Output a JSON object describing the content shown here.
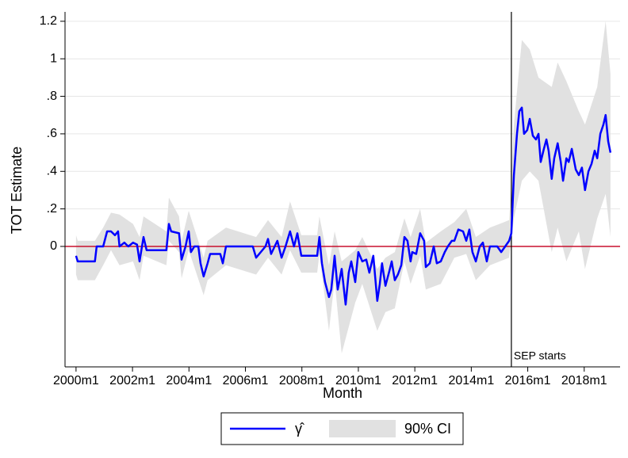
{
  "chart_data": {
    "type": "line",
    "y_label": "TOT Estimate",
    "x_label": "Month",
    "xlim": [
      1999.61,
      2019.27
    ],
    "xticks": [
      {
        "value": 2000,
        "label": "2000m1"
      },
      {
        "value": 2002,
        "label": "2002m1"
      },
      {
        "value": 2004,
        "label": "2004m1"
      },
      {
        "value": 2006,
        "label": "2006m1"
      },
      {
        "value": 2008,
        "label": "2008m1"
      },
      {
        "value": 2010,
        "label": "2010m1"
      },
      {
        "value": 2012,
        "label": "2012m1"
      },
      {
        "value": 2014,
        "label": "2014m1"
      },
      {
        "value": 2016,
        "label": "2016m1"
      },
      {
        "value": 2018,
        "label": "2018m1"
      }
    ],
    "ylim": [
      -0.642,
      1.25
    ],
    "yticks": [
      0,
      {
        "value": 0.2,
        "label": ".2"
      },
      {
        "value": 0.4,
        "label": ".4"
      },
      {
        "value": 0.6,
        "label": ".6"
      },
      {
        "value": 0.8,
        "label": ".8"
      },
      1,
      1.2
    ],
    "grid": true,
    "reference_line": {
      "y": 0,
      "color": "#c8102e"
    },
    "event_line": {
      "x": 2015.42,
      "label": "SEP starts"
    },
    "legend": "bottom",
    "series": [
      {
        "name": "γ̂",
        "color": "#0000ff",
        "x": [
          2000.0,
          2000.06,
          2000.67,
          2000.73,
          2000.96,
          2001.1,
          2001.24,
          2001.38,
          2001.49,
          2001.54,
          2001.71,
          2001.85,
          2002.02,
          2002.16,
          2002.25,
          2002.39,
          2002.5,
          2003.2,
          2003.29,
          2003.37,
          2003.65,
          2003.74,
          2003.88,
          2003.99,
          2004.07,
          2004.19,
          2004.33,
          2004.41,
          2004.52,
          2004.66,
          2004.75,
          2005.11,
          2005.2,
          2005.31,
          2006.01,
          2006.26,
          2006.38,
          2006.71,
          2006.8,
          2006.91,
          2007.13,
          2007.28,
          2007.42,
          2007.58,
          2007.72,
          2007.84,
          2007.98,
          2008.54,
          2008.62,
          2008.71,
          2008.82,
          2008.96,
          2009.04,
          2009.16,
          2009.27,
          2009.41,
          2009.55,
          2009.66,
          2009.75,
          2009.89,
          2010.0,
          2010.14,
          2010.28,
          2010.39,
          2010.53,
          2010.67,
          2010.76,
          2010.84,
          2010.96,
          2011.1,
          2011.18,
          2011.29,
          2011.4,
          2011.52,
          2011.63,
          2011.74,
          2011.85,
          2011.91,
          2012.05,
          2012.19,
          2012.33,
          2012.39,
          2012.53,
          2012.67,
          2012.78,
          2012.92,
          2013.06,
          2013.17,
          2013.31,
          2013.4,
          2013.54,
          2013.71,
          2013.82,
          2013.93,
          2014.04,
          2014.16,
          2014.3,
          2014.41,
          2014.55,
          2014.66,
          2014.92,
          2015.06,
          2015.2,
          2015.34,
          2015.42,
          2015.51,
          2015.62,
          2015.7,
          2015.79,
          2015.87,
          2015.98,
          2016.07,
          2016.18,
          2016.29,
          2016.38,
          2016.46,
          2016.57,
          2016.66,
          2016.74,
          2016.85,
          2016.94,
          2017.06,
          2017.17,
          2017.25,
          2017.37,
          2017.45,
          2017.56,
          2017.7,
          2017.81,
          2017.92,
          2018.03,
          2018.15,
          2018.26,
          2018.37,
          2018.46,
          2018.57,
          2018.68,
          2018.76,
          2018.85,
          2018.93
        ],
        "values": [
          -0.05,
          -0.08,
          -0.08,
          0,
          0,
          0.08,
          0.08,
          0.06,
          0.08,
          0,
          0.02,
          0,
          0.02,
          0.01,
          -0.08,
          0.05,
          -0.02,
          -0.02,
          0.12,
          0.08,
          0.07,
          -0.07,
          0,
          0.08,
          -0.03,
          0,
          0,
          -0.09,
          -0.16,
          -0.09,
          -0.04,
          -0.04,
          -0.09,
          0,
          0,
          0,
          -0.06,
          0,
          0.04,
          -0.04,
          0.03,
          -0.06,
          0,
          0.08,
          0,
          0.07,
          -0.05,
          -0.05,
          0.05,
          -0.09,
          -0.19,
          -0.27,
          -0.23,
          -0.05,
          -0.23,
          -0.12,
          -0.31,
          -0.14,
          -0.08,
          -0.19,
          -0.03,
          -0.08,
          -0.07,
          -0.14,
          -0.05,
          -0.29,
          -0.2,
          -0.09,
          -0.21,
          -0.13,
          -0.08,
          -0.18,
          -0.15,
          -0.1,
          0.05,
          0.03,
          -0.08,
          -0.03,
          -0.04,
          0.07,
          0.03,
          -0.11,
          -0.09,
          0,
          -0.09,
          -0.08,
          -0.03,
          0,
          0.03,
          0.03,
          0.09,
          0.08,
          0.03,
          0.09,
          -0.03,
          -0.08,
          0,
          0.02,
          -0.08,
          0,
          0,
          -0.03,
          0,
          0.03,
          0.07,
          0.38,
          0.6,
          0.72,
          0.74,
          0.6,
          0.62,
          0.68,
          0.59,
          0.57,
          0.6,
          0.45,
          0.52,
          0.57,
          0.51,
          0.36,
          0.47,
          0.55,
          0.45,
          0.35,
          0.47,
          0.45,
          0.52,
          0.41,
          0.38,
          0.42,
          0.3,
          0.4,
          0.44,
          0.51,
          0.47,
          0.6,
          0.65,
          0.7,
          0.56,
          0.5
        ]
      }
    ],
    "band": {
      "name": "90% CI",
      "color": "#e1e1e1",
      "x": [
        2000.0,
        2000.06,
        2000.67,
        2000.96,
        2001.24,
        2001.54,
        2002.02,
        2002.25,
        2002.39,
        2003.2,
        2003.29,
        2003.65,
        2003.74,
        2003.99,
        2004.52,
        2004.66,
        2005.31,
        2006.38,
        2006.8,
        2007.28,
        2007.58,
        2007.98,
        2008.54,
        2008.62,
        2008.96,
        2009.16,
        2009.41,
        2009.89,
        2010.14,
        2010.67,
        2010.96,
        2011.29,
        2011.63,
        2011.85,
        2012.19,
        2012.39,
        2012.92,
        2013.4,
        2013.82,
        2014.16,
        2014.66,
        2015.34,
        2015.51,
        2015.79,
        2016.07,
        2016.38,
        2016.85,
        2017.06,
        2017.37,
        2017.81,
        2018.03,
        2018.46,
        2018.76,
        2018.93
      ],
      "lower": [
        -0.15,
        -0.18,
        -0.18,
        -0.1,
        -0.02,
        -0.1,
        -0.08,
        -0.18,
        -0.05,
        -0.1,
        0.03,
        -0.03,
        -0.17,
        -0.02,
        -0.26,
        -0.18,
        -0.1,
        -0.15,
        -0.06,
        -0.15,
        -0.02,
        -0.14,
        -0.14,
        -0.04,
        -0.45,
        -0.18,
        -0.57,
        -0.3,
        -0.2,
        -0.45,
        -0.35,
        -0.33,
        -0.08,
        -0.2,
        -0.05,
        -0.23,
        -0.2,
        -0.06,
        -0.04,
        -0.18,
        -0.1,
        -0.06,
        0.15,
        0.35,
        0.4,
        0.35,
        -0.03,
        0.1,
        -0.08,
        0.08,
        -0.12,
        0.15,
        0.28,
        0.05
      ],
      "upper": [
        0.06,
        0.03,
        0.03,
        0.1,
        0.18,
        0.17,
        0.12,
        0.05,
        0.16,
        0.08,
        0.26,
        0.16,
        0.03,
        0.19,
        -0.06,
        0.03,
        0.1,
        0.05,
        0.14,
        0.05,
        0.24,
        0.06,
        0.06,
        0.16,
        -0.1,
        0.08,
        -0.08,
        -0.02,
        0.05,
        -0.12,
        -0.06,
        -0.03,
        0.15,
        0.05,
        0.2,
        0.02,
        0.08,
        0.13,
        0.2,
        0.05,
        0.1,
        0.14,
        0.65,
        1.1,
        1.05,
        0.9,
        0.85,
        0.98,
        0.88,
        0.72,
        0.65,
        0.85,
        1.2,
        0.92
      ]
    }
  }
}
